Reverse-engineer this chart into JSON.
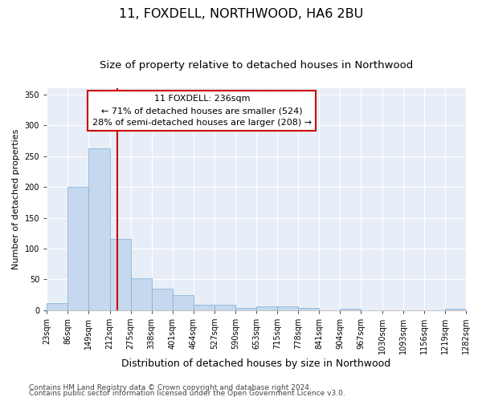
{
  "title1": "11, FOXDELL, NORTHWOOD, HA6 2BU",
  "title2": "Size of property relative to detached houses in Northwood",
  "xlabel": "Distribution of detached houses by size in Northwood",
  "ylabel": "Number of detached properties",
  "bin_edges": [
    23,
    86,
    149,
    212,
    275,
    338,
    401,
    464,
    527,
    590,
    653,
    715,
    778,
    841,
    904,
    967,
    1030,
    1093,
    1156,
    1219,
    1282
  ],
  "bar_heights": [
    11,
    200,
    262,
    116,
    52,
    35,
    24,
    9,
    9,
    4,
    7,
    7,
    4,
    0,
    3,
    0,
    0,
    0,
    0,
    2
  ],
  "bar_color": "#c5d8ed",
  "bar_edge_color": "#7bafd4",
  "vline_x": 236,
  "vline_color": "#cc0000",
  "ylim": [
    0,
    360
  ],
  "yticks": [
    0,
    50,
    100,
    150,
    200,
    250,
    300,
    350
  ],
  "tick_labels": [
    "23sqm",
    "86sqm",
    "149sqm",
    "212sqm",
    "275sqm",
    "338sqm",
    "401sqm",
    "464sqm",
    "527sqm",
    "590sqm",
    "653sqm",
    "715sqm",
    "778sqm",
    "841sqm",
    "904sqm",
    "967sqm",
    "1030sqm",
    "1093sqm",
    "1156sqm",
    "1219sqm",
    "1282sqm"
  ],
  "annotation_title": "11 FOXDELL: 236sqm",
  "annotation_line1": "← 71% of detached houses are smaller (524)",
  "annotation_line2": "28% of semi-detached houses are larger (208) →",
  "annotation_box_color": "#ffffff",
  "annotation_box_edge": "#cc0000",
  "footer1": "Contains HM Land Registry data © Crown copyright and database right 2024.",
  "footer2": "Contains public sector information licensed under the Open Government Licence v3.0.",
  "bg_color": "#e8eef8",
  "grid_color": "#ffffff",
  "title1_fontsize": 11.5,
  "title2_fontsize": 9.5,
  "xlabel_fontsize": 9,
  "ylabel_fontsize": 8,
  "tick_fontsize": 7,
  "footer_fontsize": 6.5,
  "ann_fontsize": 8
}
